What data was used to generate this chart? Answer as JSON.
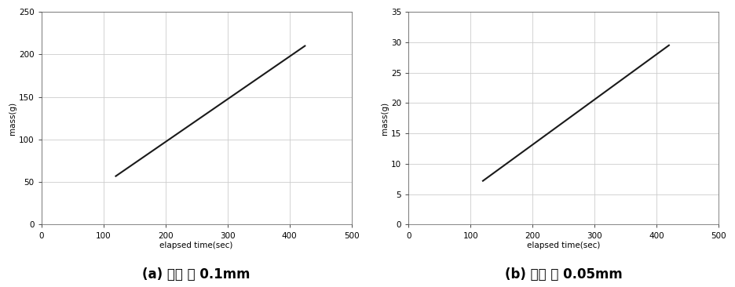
{
  "plot_a": {
    "x": [
      120,
      425
    ],
    "y": [
      57,
      210
    ],
    "xlabel": "elapsed time(sec)",
    "ylabel": "mass(g)",
    "xlim": [
      0,
      500
    ],
    "ylim": [
      0,
      250
    ],
    "xticks": [
      0,
      100,
      200,
      300,
      400,
      500
    ],
    "yticks": [
      0,
      50,
      100,
      150,
      200,
      250
    ],
    "caption": "(a) 균열 폭 0.1mm"
  },
  "plot_b": {
    "x": [
      120,
      420
    ],
    "y": [
      7.2,
      29.5
    ],
    "xlabel": "elapsed time(sec)",
    "ylabel": "mass(g)",
    "xlim": [
      0,
      500
    ],
    "ylim": [
      0,
      35
    ],
    "xticks": [
      0,
      100,
      200,
      300,
      400,
      500
    ],
    "yticks": [
      0,
      5,
      10,
      15,
      20,
      25,
      30,
      35
    ],
    "caption": "(b) 균열 폭 0.05mm"
  },
  "line_color": "#1a1a1a",
  "line_width": 1.5,
  "grid_color": "#cccccc",
  "bg_color": "#ffffff",
  "caption_fontsize": 12,
  "axis_label_fontsize": 7.5,
  "tick_fontsize": 7.5
}
